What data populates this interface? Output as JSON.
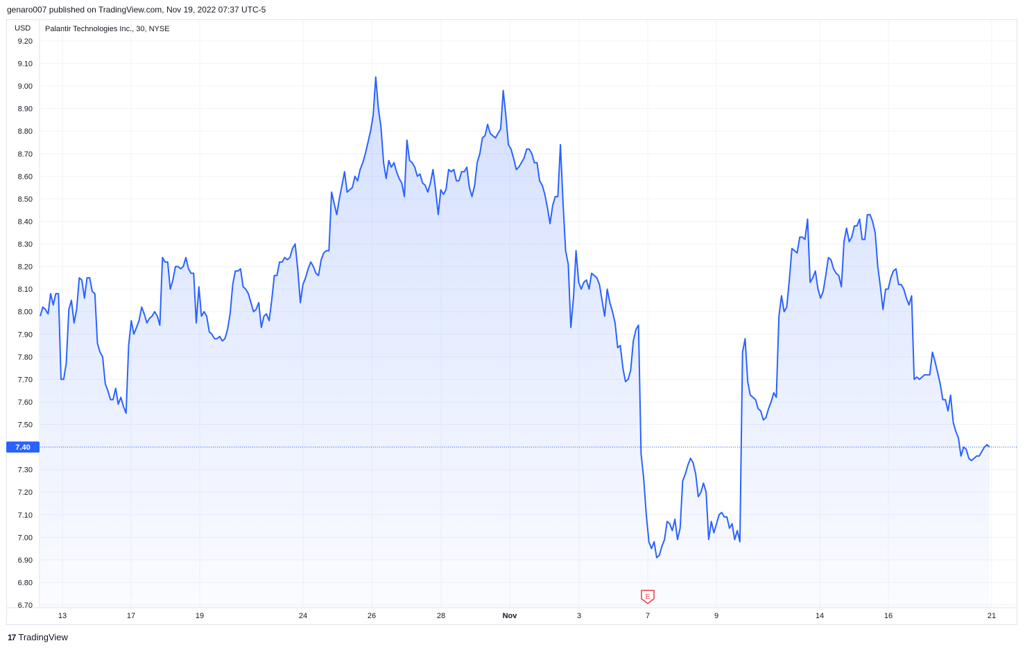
{
  "header": {
    "publisher_text": "genaro007 published on TradingView.com, Nov 19, 2022 07:37 UTC-5"
  },
  "legend": {
    "currency": "USD",
    "symbol_text": "Palantir Technologies Inc., 30, NYSE"
  },
  "footer": {
    "brand": "TradingView",
    "logo_glyph": "17"
  },
  "colors": {
    "line": "#2962ff",
    "last_price_badge": "#2962ff",
    "grid": "#f0f3fa",
    "earnings": "#f23645"
  },
  "chart_data": {
    "type": "area",
    "title": "Palantir Technologies Inc., 30, NYSE",
    "ylabel": "USD",
    "ylim": [
      6.7,
      9.2
    ],
    "y_ticks": [
      "9.20",
      "9.10",
      "9.00",
      "8.90",
      "8.80",
      "8.70",
      "8.60",
      "8.50",
      "8.40",
      "8.30",
      "8.20",
      "8.10",
      "8.00",
      "7.90",
      "7.80",
      "7.70",
      "7.60",
      "7.50",
      "7.40",
      "7.30",
      "7.20",
      "7.10",
      "7.00",
      "6.90",
      "6.80",
      "6.70"
    ],
    "x_ticks": [
      "13",
      "17",
      "19",
      "24",
      "26",
      "28",
      "Nov",
      "3",
      "7",
      "9",
      "14",
      "16",
      "21"
    ],
    "last_price": "7.40",
    "earnings_marker": {
      "label": "E",
      "date": "7"
    },
    "series": [
      {
        "values": [
          7.98,
          8.02,
          8.01,
          7.99,
          8.08,
          8.03,
          8.08,
          8.08,
          7.7,
          7.7,
          7.77,
          8.01,
          8.05,
          7.95,
          8.01,
          8.15,
          8.14,
          8.06,
          8.15,
          8.15,
          8.09,
          8.08,
          7.86,
          7.82,
          7.8,
          7.68,
          7.65,
          7.61,
          7.61,
          7.66,
          7.59,
          7.62,
          7.58,
          7.55,
          7.85,
          7.96,
          7.9,
          7.93,
          7.96,
          8.02,
          7.99,
          7.95,
          7.97,
          7.98,
          8.0,
          7.98,
          7.94,
          8.24,
          8.22,
          8.22,
          8.1,
          8.14,
          8.2,
          8.2,
          8.19,
          8.2,
          8.24,
          8.19,
          8.17,
          8.17,
          7.95,
          8.11,
          7.98,
          8.0,
          7.98,
          7.91,
          7.9,
          7.88,
          7.88,
          7.89,
          7.87,
          7.88,
          7.92,
          7.99,
          8.12,
          8.18,
          8.18,
          8.19,
          8.11,
          8.1,
          8.08,
          8.04,
          8.0,
          8.01,
          8.04,
          7.93,
          7.98,
          7.99,
          7.96,
          8.05,
          8.16,
          8.16,
          8.22,
          8.22,
          8.24,
          8.23,
          8.24,
          8.28,
          8.3,
          8.19,
          8.04,
          8.12,
          8.15,
          8.19,
          8.22,
          8.2,
          8.17,
          8.16,
          8.23,
          8.26,
          8.27,
          8.27,
          8.53,
          8.48,
          8.43,
          8.5,
          8.56,
          8.62,
          8.53,
          8.54,
          8.55,
          8.6,
          8.58,
          8.63,
          8.66,
          8.7,
          8.75,
          8.8,
          8.87,
          9.04,
          8.9,
          8.82,
          8.66,
          8.59,
          8.67,
          8.64,
          8.66,
          8.62,
          8.59,
          8.57,
          8.51,
          8.76,
          8.67,
          8.66,
          8.64,
          8.6,
          8.61,
          8.57,
          8.56,
          8.53,
          8.57,
          8.63,
          8.54,
          8.43,
          8.54,
          8.52,
          8.54,
          8.63,
          8.62,
          8.63,
          8.58,
          8.58,
          8.62,
          8.62,
          8.64,
          8.55,
          8.51,
          8.56,
          8.66,
          8.7,
          8.77,
          8.78,
          8.83,
          8.79,
          8.78,
          8.77,
          8.79,
          8.81,
          8.98,
          8.87,
          8.74,
          8.72,
          8.68,
          8.63,
          8.64,
          8.66,
          8.68,
          8.72,
          8.72,
          8.7,
          8.66,
          8.66,
          8.58,
          8.56,
          8.52,
          8.46,
          8.39,
          8.47,
          8.51,
          8.51,
          8.74,
          8.48,
          8.27,
          8.21,
          7.93,
          8.06,
          8.27,
          8.13,
          8.1,
          8.13,
          8.14,
          8.1,
          8.17,
          8.16,
          8.15,
          8.12,
          8.05,
          7.98,
          8.1,
          8.04,
          8.0,
          7.95,
          7.84,
          7.85,
          7.75,
          7.69,
          7.7,
          7.74,
          7.87,
          7.92,
          7.94,
          7.37,
          7.26,
          7.1,
          6.98,
          6.95,
          6.98,
          6.91,
          6.92,
          6.96,
          6.99,
          7.07,
          7.06,
          7.03,
          7.08,
          6.99,
          7.04,
          7.25,
          7.28,
          7.32,
          7.35,
          7.33,
          7.28,
          7.18,
          7.2,
          7.24,
          7.2,
          6.99,
          7.07,
          7.02,
          7.06,
          7.1,
          7.11,
          7.09,
          7.09,
          7.04,
          7.06,
          6.99,
          7.03,
          6.98,
          7.82,
          7.88,
          7.69,
          7.63,
          7.62,
          7.61,
          7.57,
          7.56,
          7.52,
          7.53,
          7.57,
          7.6,
          7.64,
          7.62,
          7.98,
          8.07,
          8.0,
          8.02,
          8.14,
          8.28,
          8.27,
          8.26,
          8.33,
          8.33,
          8.32,
          8.41,
          8.13,
          8.15,
          8.18,
          8.1,
          8.06,
          8.09,
          8.16,
          8.24,
          8.23,
          8.19,
          8.17,
          8.16,
          8.11,
          8.31,
          8.37,
          8.31,
          8.33,
          8.38,
          8.38,
          8.41,
          8.32,
          8.32,
          8.43,
          8.43,
          8.4,
          8.35,
          8.2,
          8.11,
          8.01,
          8.1,
          8.1,
          8.15,
          8.18,
          8.19,
          8.12,
          8.12,
          8.1,
          8.06,
          8.03,
          8.07,
          7.7,
          7.71,
          7.7,
          7.71,
          7.72,
          7.72,
          7.72,
          7.82,
          7.78,
          7.73,
          7.68,
          7.61,
          7.61,
          7.56,
          7.63,
          7.51,
          7.47,
          7.44,
          7.36,
          7.4,
          7.39,
          7.35,
          7.34,
          7.35,
          7.36,
          7.36,
          7.38,
          7.4,
          7.41,
          7.4
        ]
      }
    ]
  }
}
